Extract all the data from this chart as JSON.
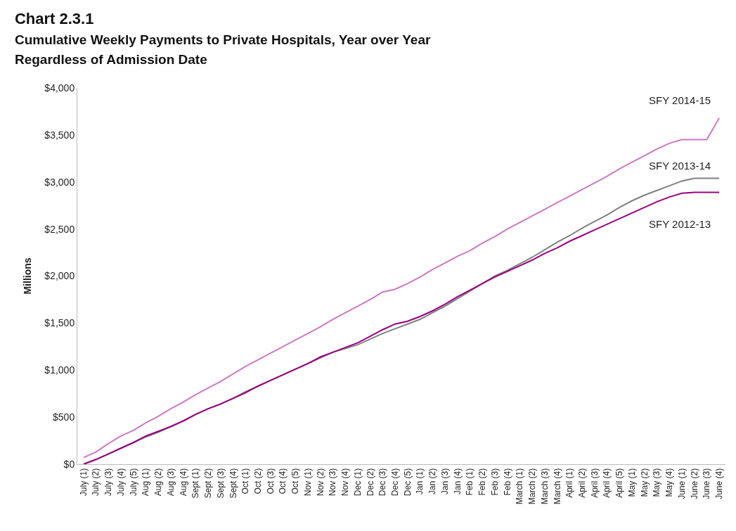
{
  "chart_data": {
    "type": "line",
    "title": "Chart 2.3.1",
    "subtitle": "Cumulative Weekly Payments to Private Hospitals, Year over Year\nRegardless of Admission Date",
    "ylabel": "Millions",
    "categories": [
      "July (1)",
      "July (2)",
      "July (3)",
      "July (4)",
      "July (5)",
      "Aug (1)",
      "Aug (2)",
      "Aug (3)",
      "Aug (4)",
      "Sept (1)",
      "Sept (2)",
      "Sept (3)",
      "Sept (4)",
      "Oct (1)",
      "Oct (2)",
      "Oct (3)",
      "Oct (4)",
      "Oct (5)",
      "Nov (1)",
      "Nov (2)",
      "Nov (3)",
      "Nov (4)",
      "Dec (1)",
      "Dec (2)",
      "Dec (3)",
      "Dec (4)",
      "Dec (5)",
      "Jan (1)",
      "Jan (2)",
      "Jan (3)",
      "Jan (4)",
      "Feb (1)",
      "Feb (2)",
      "Feb (3)",
      "Feb (4)",
      "March (1)",
      "March (2)",
      "March (3)",
      "March (4)",
      "April (1)",
      "April (2)",
      "April (3)",
      "April (4)",
      "April (5)",
      "May (1)",
      "May (2)",
      "May (3)",
      "May (4)",
      "June (1)",
      "June (2)",
      "June (3)",
      "June (4)"
    ],
    "series": [
      {
        "name": "SFY 2014-15",
        "color": "#cc79c4",
        "values": [
          70,
          130,
          220,
          300,
          360,
          440,
          510,
          590,
          660,
          740,
          810,
          880,
          960,
          1040,
          1110,
          1180,
          1250,
          1320,
          1390,
          1460,
          1540,
          1610,
          1680,
          1750,
          1830,
          1860,
          1920,
          1990,
          2070,
          2140,
          2210,
          2270,
          2350,
          2420,
          2500,
          2570,
          2640,
          2710,
          2780,
          2850,
          2920,
          2990,
          3060,
          3140,
          3210,
          3280,
          3350,
          3410,
          3450,
          3450,
          3450,
          3680
        ]
      },
      {
        "name": "SFY 2013-14",
        "color": "#808080",
        "values": [
          0,
          50,
          110,
          170,
          230,
          290,
          340,
          400,
          460,
          530,
          590,
          640,
          700,
          770,
          830,
          890,
          950,
          1010,
          1070,
          1130,
          1190,
          1230,
          1270,
          1330,
          1390,
          1440,
          1490,
          1540,
          1610,
          1680,
          1760,
          1840,
          1920,
          2000,
          2060,
          2130,
          2200,
          2280,
          2360,
          2430,
          2510,
          2580,
          2650,
          2730,
          2800,
          2860,
          2910,
          2960,
          3010,
          3040,
          3040,
          3040
        ]
      },
      {
        "name": "SFY 2012-13",
        "color": "#990080",
        "values": [
          0,
          50,
          110,
          170,
          230,
          300,
          350,
          400,
          460,
          530,
          590,
          640,
          700,
          760,
          830,
          890,
          950,
          1010,
          1070,
          1140,
          1190,
          1240,
          1290,
          1360,
          1430,
          1490,
          1520,
          1570,
          1630,
          1700,
          1780,
          1850,
          1920,
          1990,
          2050,
          2110,
          2170,
          2240,
          2300,
          2370,
          2430,
          2490,
          2550,
          2610,
          2670,
          2730,
          2790,
          2840,
          2880,
          2890,
          2890,
          2890
        ]
      }
    ],
    "ylim": [
      0,
      4000
    ],
    "yticks": [
      {
        "value": 0,
        "label": "$0"
      },
      {
        "value": 500,
        "label": "$500"
      },
      {
        "value": 1000,
        "label": "$1,000"
      },
      {
        "value": 1500,
        "label": "$1,500"
      },
      {
        "value": 2000,
        "label": "$2,000"
      },
      {
        "value": 2500,
        "label": "$2,500"
      },
      {
        "value": 3000,
        "label": "$3,000"
      },
      {
        "value": 3500,
        "label": "$3,500"
      },
      {
        "value": 4000,
        "label": "$4,000"
      }
    ],
    "grid": false,
    "legend": false,
    "marker": "none",
    "line_style": "solid"
  }
}
